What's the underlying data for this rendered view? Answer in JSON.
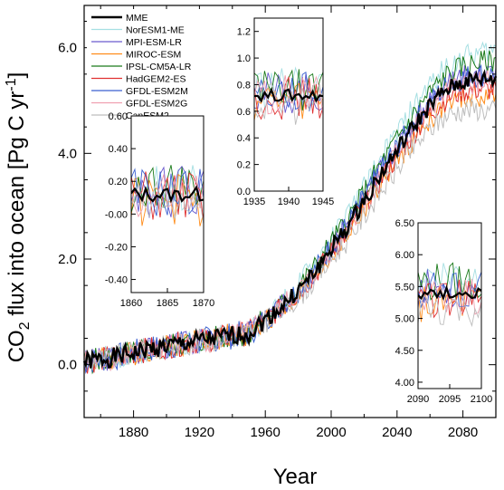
{
  "chart_data": {
    "type": "line",
    "title": "",
    "xlabel": "Year",
    "ylabel_parts": [
      "CO",
      "2",
      " flux into ocean [Pg C yr",
      "-1",
      "]"
    ],
    "xlim": [
      1850,
      2100
    ],
    "ylim": [
      -1.0,
      6.8
    ],
    "xticks": [
      1880,
      1920,
      1960,
      2000,
      2040,
      2080
    ],
    "yticks": [
      0.0,
      2.0,
      4.0,
      6.0
    ],
    "ytick_labels": [
      "0.0",
      "2.0",
      "4.0",
      "6.0"
    ],
    "legend_position": "top-left",
    "series": [
      {
        "name": "MME",
        "color": "#000000",
        "width": 2.4,
        "offset": 0.0,
        "amp": 0.08,
        "seed": 1
      },
      {
        "name": "NorESM1-ME",
        "color": "#a6dfe2",
        "width": 1,
        "offset": 0.55,
        "amp": 0.14,
        "seed": 2
      },
      {
        "name": "MPI-ESM-LR",
        "color": "#6a5acd",
        "width": 1,
        "offset": 0.15,
        "amp": 0.14,
        "seed": 3
      },
      {
        "name": "MIROC-ESM",
        "color": "#ff8c1a",
        "width": 1,
        "offset": -0.35,
        "amp": 0.14,
        "seed": 4
      },
      {
        "name": "IPSL-CM5A-LR",
        "color": "#1a7a1a",
        "width": 1,
        "offset": 0.35,
        "amp": 0.14,
        "seed": 5
      },
      {
        "name": "HadGEM2-ES",
        "color": "#e03030",
        "width": 1,
        "offset": -0.2,
        "amp": 0.14,
        "seed": 6
      },
      {
        "name": "GFDL-ESM2M",
        "color": "#3a5fd0",
        "width": 1,
        "offset": 0.1,
        "amp": 0.16,
        "seed": 7
      },
      {
        "name": "GFDL-ESM2G",
        "color": "#f0a0b0",
        "width": 1,
        "offset": -0.05,
        "amp": 0.14,
        "seed": 8
      },
      {
        "name": "CanESM2",
        "color": "#bdbdbd",
        "width": 1,
        "offset": -0.6,
        "amp": 0.14,
        "seed": 9
      }
    ],
    "mme_anchors": {
      "x": [
        1850,
        1870,
        1890,
        1910,
        1930,
        1950,
        1960,
        1970,
        1980,
        1990,
        2000,
        2010,
        2020,
        2030,
        2040,
        2050,
        2060,
        2070,
        2080,
        2090,
        2100
      ],
      "y": [
        0.05,
        0.15,
        0.3,
        0.4,
        0.5,
        0.6,
        0.85,
        1.1,
        1.4,
        1.75,
        2.2,
        2.6,
        3.1,
        3.6,
        4.05,
        4.5,
        4.9,
        5.2,
        5.35,
        5.4,
        5.4
      ]
    },
    "insets": [
      {
        "name": "1860-1870",
        "xlim": [
          1860,
          1870
        ],
        "ylim": [
          -0.48,
          0.6
        ],
        "xticks": [
          1860,
          1865,
          1870
        ],
        "yticks": [
          -0.4,
          -0.2,
          0.0,
          0.2,
          0.4,
          0.6
        ],
        "ytick_labels": [
          "-0.40",
          "-0.20",
          "-0.00",
          "0.20",
          "0.40",
          "0.60"
        ],
        "base": 0.12,
        "spread": 0.18
      },
      {
        "name": "1935-1945",
        "xlim": [
          1935,
          1945
        ],
        "ylim": [
          0.0,
          1.3
        ],
        "xticks": [
          1935,
          1940,
          1945
        ],
        "yticks": [
          0.0,
          0.2,
          0.4,
          0.6,
          0.8,
          1.0,
          1.2
        ],
        "ytick_labels": [
          "0.0",
          "0.2",
          "0.4",
          "0.6",
          "0.8",
          "1.0",
          "1.2"
        ],
        "base": 0.72,
        "spread": 0.18
      },
      {
        "name": "2090-2100",
        "xlim": [
          2090,
          2100
        ],
        "ylim": [
          3.9,
          6.5
        ],
        "xticks": [
          2090,
          2095,
          2100
        ],
        "yticks": [
          4.0,
          4.5,
          5.0,
          5.5,
          6.0,
          6.5
        ],
        "ytick_labels": [
          "4.00",
          "4.50",
          "5.00",
          "5.50",
          "6.00",
          "6.50"
        ],
        "base": 5.4,
        "spread": 0.35
      }
    ]
  }
}
